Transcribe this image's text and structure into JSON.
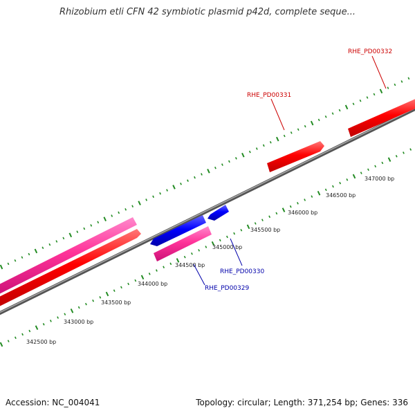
{
  "title": "Rhizobium etli CFN 42 symbiotic plasmid p42d, complete seque...",
  "footer": {
    "accession_label": "Accession:",
    "accession": "NC_004041",
    "topology_label": "Topology:",
    "topology": "circular",
    "length_label": "Length:",
    "length": "371,254 bp",
    "genes_label": "Genes:",
    "genes": "336"
  },
  "scale_labels": [
    "342500 bp",
    "343000 bp",
    "343500 bp",
    "344000 bp",
    "344500 bp",
    "345000 bp",
    "345500 bp",
    "346000 bp",
    "346500 bp",
    "347000 bp"
  ],
  "gene_labels": [
    {
      "name": "RHE_PD00329",
      "color": "#0000aa"
    },
    {
      "name": "RHE_PD00330",
      "color": "#0000aa"
    },
    {
      "name": "RHE_PD00331",
      "color": "#cc0000"
    },
    {
      "name": "RHE_PD00332",
      "color": "#cc0000"
    }
  ],
  "colors": {
    "forward_cds": "#ff0000",
    "reverse_cds": "#0000ff",
    "rna": "#ff3399",
    "backbone": "#777777",
    "ticks": "#228b22"
  }
}
